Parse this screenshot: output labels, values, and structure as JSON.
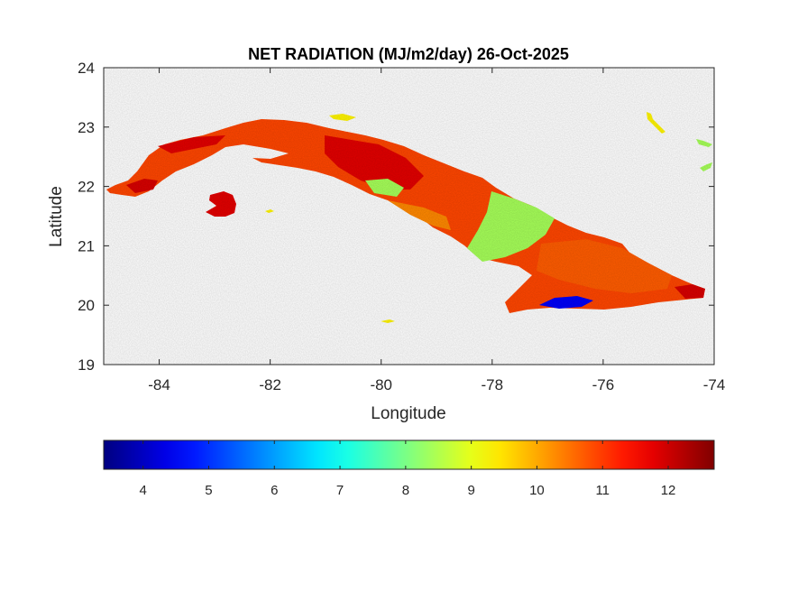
{
  "chart_data": {
    "type": "heatmap",
    "title": "NET RADIATION (MJ/m2/day) 26-Oct-2025",
    "xlabel": "Longitude",
    "ylabel": "Latitude",
    "xlim": [
      -85,
      -74
    ],
    "ylim": [
      19,
      24
    ],
    "xticks": [
      -84,
      -82,
      -80,
      -78,
      -76,
      -74
    ],
    "yticks": [
      19,
      20,
      21,
      22,
      23,
      24
    ],
    "colorbar": {
      "colormap": "jet",
      "range": [
        3.4,
        12.7
      ],
      "ticks": [
        4,
        5,
        6,
        7,
        8,
        9,
        10,
        11,
        12
      ],
      "orientation": "horizontal",
      "placement": "below"
    },
    "regions": [
      {
        "area": "main-island-west",
        "value": 10.9
      },
      {
        "area": "isla-de-la-juventud",
        "value": 11.8
      },
      {
        "area": "central-north",
        "value": 9.3
      },
      {
        "area": "central-south",
        "value": 10.3
      },
      {
        "area": "cooler-band-east-central",
        "value": 8.4
      },
      {
        "area": "east",
        "value": 10.7
      },
      {
        "area": "sierra-maestra-low",
        "value": 4.5
      },
      {
        "area": "far-east-tip",
        "value": 11.9
      }
    ]
  }
}
